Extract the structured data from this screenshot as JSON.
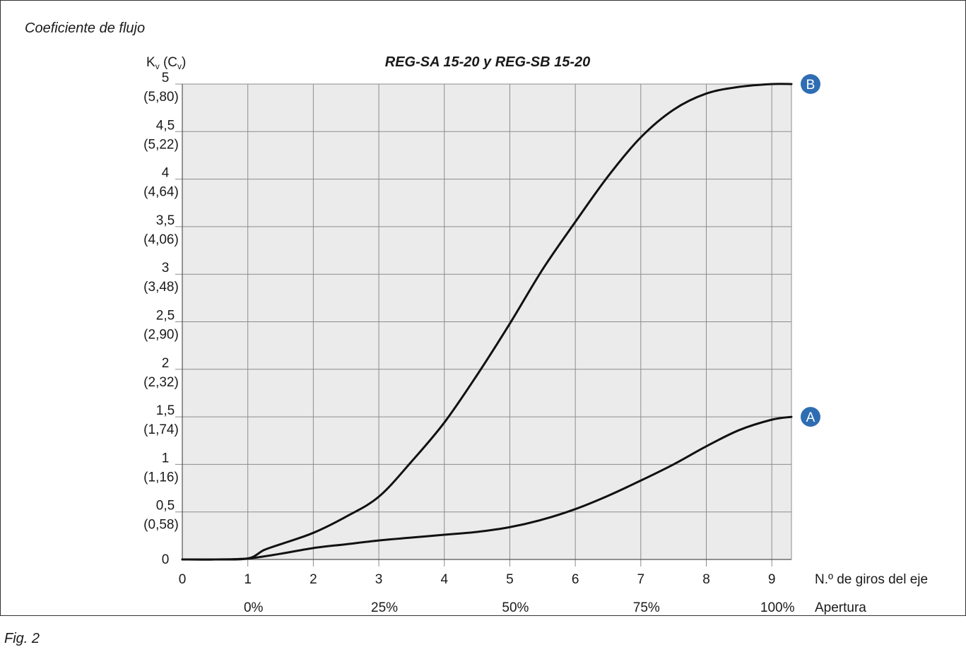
{
  "header": {
    "heading": "Coeficiente de flujo"
  },
  "footer": {
    "caption": "Fig. 2"
  },
  "chart_data": {
    "type": "line",
    "title": "REG-SA 15-20 y REG-SB 15-20",
    "ylabel_main": "K",
    "ylabel_main_sub": "v",
    "ylabel_alt": "C",
    "ylabel_alt_sub": "v",
    "xlabel": "N.º de giros del eje",
    "x2label": "Apertura",
    "xlim": [
      0,
      9.3
    ],
    "ylim": [
      0,
      5
    ],
    "grid": true,
    "x_ticks": [
      "0",
      "1",
      "2",
      "3",
      "4",
      "5",
      "6",
      "7",
      "8",
      "9"
    ],
    "x2_ticks": [
      {
        "x": 1,
        "label": "0%"
      },
      {
        "x": 3,
        "label": "25%"
      },
      {
        "x": 5,
        "label": "50%"
      },
      {
        "x": 7,
        "label": "75%"
      },
      {
        "x": 9,
        "label": "100%"
      }
    ],
    "y_ticks": [
      {
        "value": 0,
        "label": "0",
        "alt": ""
      },
      {
        "value": 0.5,
        "label": "0,5",
        "alt": "(0,58)"
      },
      {
        "value": 1,
        "label": "1",
        "alt": "(1,16)"
      },
      {
        "value": 1.5,
        "label": "1,5",
        "alt": "(1,74)"
      },
      {
        "value": 2,
        "label": "2",
        "alt": "(2,32)"
      },
      {
        "value": 2.5,
        "label": "2,5",
        "alt": "(2,90)"
      },
      {
        "value": 3,
        "label": "3",
        "alt": "(3,48)"
      },
      {
        "value": 3.5,
        "label": "3,5",
        "alt": "(4,06)"
      },
      {
        "value": 4,
        "label": "4",
        "alt": "(4,64)"
      },
      {
        "value": 4.5,
        "label": "4,5",
        "alt": "(5,22)"
      },
      {
        "value": 5,
        "label": "5",
        "alt": "(5,80)"
      }
    ],
    "series": [
      {
        "name": "A",
        "color": "#111111",
        "marker_color": "#2f6db3",
        "x": [
          0,
          0.5,
          1.0,
          1.5,
          2.0,
          2.5,
          3.0,
          3.5,
          4.0,
          4.5,
          5.0,
          5.5,
          6.0,
          6.5,
          7.0,
          7.5,
          8.0,
          8.5,
          9.0,
          9.3
        ],
        "y": [
          0,
          0,
          0.01,
          0.06,
          0.12,
          0.16,
          0.2,
          0.23,
          0.26,
          0.29,
          0.34,
          0.42,
          0.53,
          0.67,
          0.83,
          1.0,
          1.19,
          1.36,
          1.47,
          1.5
        ]
      },
      {
        "name": "B",
        "color": "#111111",
        "marker_color": "#2f6db3",
        "x": [
          0,
          0.5,
          1.0,
          1.25,
          1.5,
          2.0,
          2.5,
          3.0,
          3.5,
          4.0,
          4.5,
          5.0,
          5.5,
          6.0,
          6.5,
          7.0,
          7.5,
          8.0,
          8.5,
          9.0,
          9.3
        ],
        "y": [
          0,
          0,
          0.01,
          0.1,
          0.16,
          0.28,
          0.45,
          0.66,
          1.03,
          1.44,
          1.94,
          2.48,
          3.05,
          3.55,
          4.03,
          4.44,
          4.73,
          4.9,
          4.97,
          5.0,
          5.0
        ]
      }
    ]
  }
}
